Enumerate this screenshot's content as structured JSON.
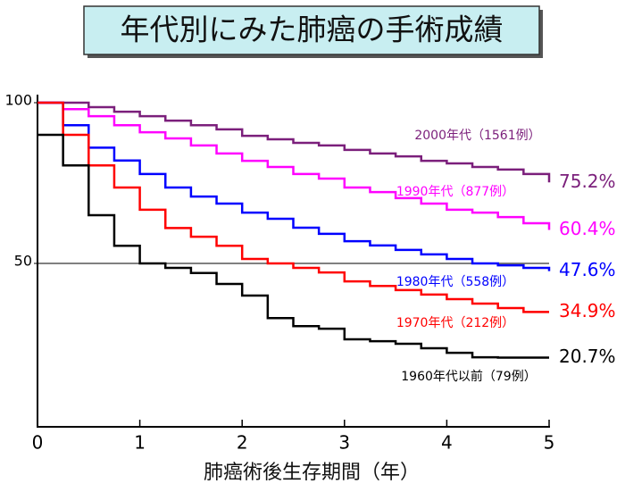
{
  "chart_data": {
    "type": "line",
    "step": true,
    "title": "年代別にみた肺癌の手術成績",
    "x_label": "肺癌術後生存期間（年）",
    "x": [
      0,
      0.25,
      0.5,
      0.75,
      1,
      1.25,
      1.5,
      1.75,
      2,
      2.25,
      2.5,
      2.75,
      3,
      3.25,
      3.5,
      3.75,
      4,
      4.25,
      4.5,
      4.75,
      5
    ],
    "xlim": [
      0,
      5
    ],
    "xticks": [
      0,
      1,
      2,
      3,
      4,
      5
    ],
    "ylim": [
      0,
      100
    ],
    "yticks": [
      50,
      100
    ],
    "grid_lines": [
      50
    ],
    "series": [
      {
        "name": "2000年代（1561例）",
        "color": "#7b1f7b",
        "values": [
          100,
          100,
          98.6,
          97.2,
          95.8,
          94.4,
          93,
          91.7,
          89.7,
          88.6,
          87.5,
          86.7,
          85.3,
          84.2,
          83.3,
          81.9,
          81.1,
          80,
          79.2,
          77.8,
          75.2
        ],
        "value_labels": [
          null,
          null,
          null,
          null,
          null,
          null,
          null,
          null,
          null,
          null,
          null,
          null,
          null,
          null,
          null,
          null,
          null,
          null,
          null,
          null,
          "75.2%"
        ]
      },
      {
        "name": "1990年代（877例）",
        "color": "#ff00ff",
        "values": [
          100,
          98,
          95.8,
          93,
          90.8,
          88.9,
          86.7,
          84.2,
          81.9,
          80,
          77.8,
          76.4,
          73.6,
          72.2,
          70.3,
          68.6,
          66.7,
          65.8,
          64.4,
          62.5,
          60.4
        ],
        "value_labels": [
          null,
          null,
          null,
          null,
          null,
          null,
          null,
          null,
          null,
          null,
          null,
          null,
          null,
          null,
          null,
          null,
          null,
          null,
          null,
          null,
          "60.4%"
        ]
      },
      {
        "name": "1980年代（558例）",
        "color": "#0000ff",
        "values": [
          100,
          93,
          86,
          82,
          77.8,
          73.6,
          70.8,
          68.6,
          65.8,
          63.9,
          61.1,
          59.2,
          56.9,
          55.6,
          54.2,
          52.8,
          51.4,
          50,
          49.4,
          48.6,
          47.6
        ],
        "value_labels": [
          null,
          null,
          null,
          null,
          null,
          null,
          null,
          null,
          null,
          null,
          null,
          null,
          null,
          null,
          null,
          null,
          null,
          null,
          null,
          null,
          "47.6%"
        ]
      },
      {
        "name": "1970年代（212例）",
        "color": "#ff0000",
        "values": [
          100,
          90,
          80.5,
          73.6,
          66.7,
          61,
          58.3,
          55.5,
          51.4,
          50,
          48.6,
          47.2,
          44.4,
          43,
          41.7,
          40.3,
          38.9,
          37.5,
          36.1,
          34.9,
          34.9
        ],
        "value_labels": [
          null,
          null,
          null,
          null,
          null,
          null,
          null,
          null,
          null,
          null,
          null,
          null,
          null,
          null,
          null,
          null,
          null,
          null,
          null,
          null,
          "34.9%"
        ]
      },
      {
        "name": "1960年代以前（79例）",
        "color": "#000000",
        "values": [
          90,
          80.5,
          65,
          55.5,
          50,
          48.6,
          47,
          43.6,
          40,
          33,
          30.5,
          29.7,
          26.4,
          25.8,
          25,
          23.6,
          22.2,
          20.8,
          20.7,
          20.7,
          20.7
        ],
        "value_labels": [
          null,
          null,
          null,
          null,
          null,
          null,
          null,
          null,
          null,
          null,
          null,
          null,
          null,
          null,
          null,
          null,
          null,
          null,
          null,
          null,
          "20.7%"
        ]
      }
    ]
  }
}
